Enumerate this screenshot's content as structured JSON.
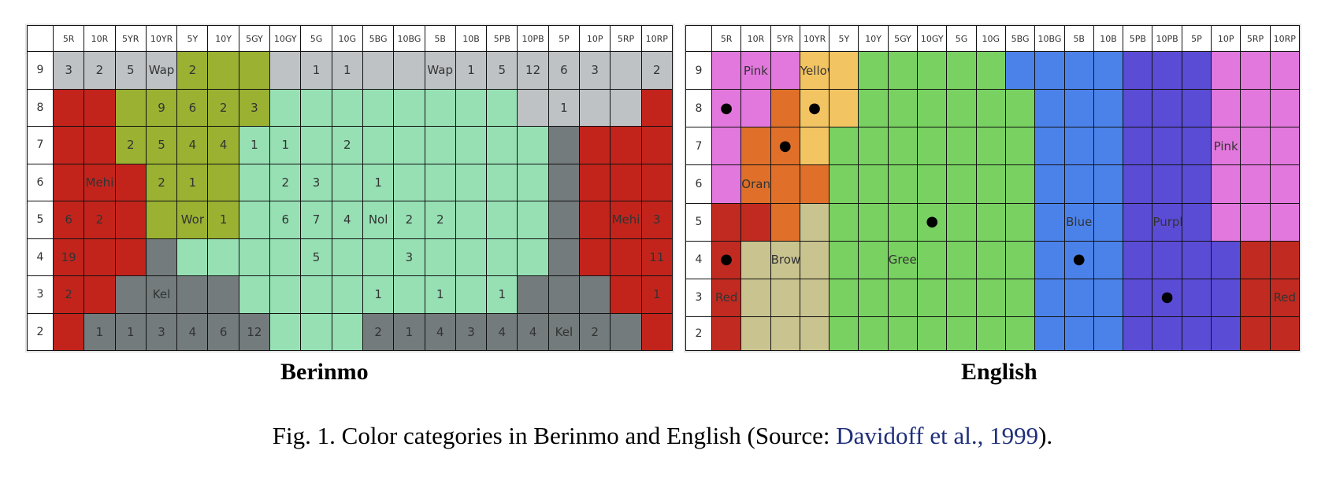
{
  "colors": {
    "Wap": "#bfc2c5",
    "Mehi": "#c2241c",
    "Wor": "#9ab132",
    "Nol": "#96e0b4",
    "Kel": "#737b7c",
    "Pink": "#e278dd",
    "Yellow": "#f3c462",
    "Orange": "#e07029",
    "Brown": "#c9c38f",
    "Green": "#78d161",
    "Blue": "#4b82ea",
    "Purple": "#5b4cd6",
    "Red": "#c12a20"
  },
  "hue_columns": [
    "5R",
    "10R",
    "5YR",
    "10YR",
    "5Y",
    "10Y",
    "5GY",
    "10GY",
    "5G",
    "10G",
    "5BG",
    "10BG",
    "5B",
    "10B",
    "5PB",
    "10PB",
    "5P",
    "10P",
    "5RP",
    "10RP"
  ],
  "value_rows": [
    "9",
    "8",
    "7",
    "6",
    "5",
    "4",
    "3",
    "2"
  ],
  "berinmo": {
    "title": "Berinmo",
    "grid_colors": [
      [
        "Wap",
        "Wap",
        "Wap",
        "Wap",
        "Wor",
        "Wor",
        "Wor",
        "Wap",
        "Wap",
        "Wap",
        "Wap",
        "Wap",
        "Wap",
        "Wap",
        "Wap",
        "Wap",
        "Wap",
        "Wap",
        "Wap",
        "Wap"
      ],
      [
        "Mehi",
        "Mehi",
        "Wor",
        "Wor",
        "Wor",
        "Wor",
        "Wor",
        "Nol",
        "Nol",
        "Nol",
        "Nol",
        "Nol",
        "Nol",
        "Nol",
        "Nol",
        "Wap",
        "Wap",
        "Wap",
        "Wap",
        "Mehi"
      ],
      [
        "Mehi",
        "Mehi",
        "Wor",
        "Wor",
        "Wor",
        "Wor",
        "Nol",
        "Nol",
        "Nol",
        "Nol",
        "Nol",
        "Nol",
        "Nol",
        "Nol",
        "Nol",
        "Nol",
        "Kel",
        "Mehi",
        "Mehi",
        "Mehi"
      ],
      [
        "Mehi",
        "Mehi",
        "Mehi",
        "Wor",
        "Wor",
        "Wor",
        "Nol",
        "Nol",
        "Nol",
        "Nol",
        "Nol",
        "Nol",
        "Nol",
        "Nol",
        "Nol",
        "Nol",
        "Kel",
        "Mehi",
        "Mehi",
        "Mehi"
      ],
      [
        "Mehi",
        "Mehi",
        "Mehi",
        "Wor",
        "Wor",
        "Wor",
        "Nol",
        "Nol",
        "Nol",
        "Nol",
        "Nol",
        "Nol",
        "Nol",
        "Nol",
        "Nol",
        "Nol",
        "Kel",
        "Mehi",
        "Mehi",
        "Mehi"
      ],
      [
        "Mehi",
        "Mehi",
        "Mehi",
        "Kel",
        "Nol",
        "Nol",
        "Nol",
        "Nol",
        "Nol",
        "Nol",
        "Nol",
        "Nol",
        "Nol",
        "Nol",
        "Nol",
        "Nol",
        "Kel",
        "Mehi",
        "Mehi",
        "Mehi"
      ],
      [
        "Mehi",
        "Mehi",
        "Kel",
        "Kel",
        "Kel",
        "Kel",
        "Nol",
        "Nol",
        "Nol",
        "Nol",
        "Nol",
        "Nol",
        "Nol",
        "Nol",
        "Nol",
        "Kel",
        "Kel",
        "Kel",
        "Mehi",
        "Mehi"
      ],
      [
        "Mehi",
        "Kel",
        "Kel",
        "Kel",
        "Kel",
        "Kel",
        "Kel",
        "Nol",
        "Nol",
        "Nol",
        "Kel",
        "Kel",
        "Kel",
        "Kel",
        "Kel",
        "Kel",
        "Kel",
        "Kel",
        "Kel",
        "Mehi"
      ]
    ],
    "grid_labels": [
      [
        "3",
        "2",
        "5",
        "Wap",
        "2",
        "",
        "",
        "",
        "1",
        "1",
        "",
        "",
        "Wap",
        "1",
        "5",
        "12",
        "6",
        "3",
        "",
        "2"
      ],
      [
        "",
        "",
        "",
        "9",
        "6",
        "2",
        "3",
        "",
        "",
        "",
        "",
        "",
        "",
        "",
        "",
        "",
        "1",
        "",
        "",
        ""
      ],
      [
        "",
        "",
        "2",
        "5",
        "4",
        "4",
        "1",
        "1",
        "",
        "2",
        "",
        "",
        "",
        "",
        "",
        "",
        "",
        "",
        "",
        ""
      ],
      [
        "",
        "Mehi",
        "",
        "2",
        "1",
        "",
        "",
        "2",
        "3",
        "",
        "1",
        "",
        "",
        "",
        "",
        "",
        "",
        "",
        "",
        ""
      ],
      [
        "6",
        "2",
        "",
        "",
        "Wor",
        "1",
        "",
        "6",
        "7",
        "4",
        "Nol",
        "2",
        "2",
        "",
        "",
        "",
        "",
        "",
        "Mehi",
        "3"
      ],
      [
        "19",
        "",
        "",
        "",
        "",
        "",
        "",
        "",
        "5",
        "",
        "",
        "3",
        "",
        "",
        "",
        "",
        "",
        "",
        "",
        "11"
      ],
      [
        "2",
        "",
        "",
        "Kel",
        "",
        "",
        "",
        "",
        "",
        "",
        "1",
        "",
        "1",
        "",
        "1",
        "",
        "",
        "",
        "",
        "1"
      ],
      [
        "",
        "1",
        "1",
        "3",
        "4",
        "6",
        "12",
        "",
        "",
        "",
        "2",
        "1",
        "4",
        "3",
        "4",
        "4",
        "Kel",
        "2",
        "",
        ""
      ]
    ]
  },
  "english": {
    "title": "English",
    "grid_colors": [
      [
        "Pink",
        "Pink",
        "Pink",
        "Yellow",
        "Yellow",
        "Green",
        "Green",
        "Green",
        "Green",
        "Green",
        "Blue",
        "Blue",
        "Blue",
        "Blue",
        "Purple",
        "Purple",
        "Purple",
        "Pink",
        "Pink",
        "Pink"
      ],
      [
        "Pink",
        "Pink",
        "Orange",
        "Yellow",
        "Yellow",
        "Green",
        "Green",
        "Green",
        "Green",
        "Green",
        "Green",
        "Blue",
        "Blue",
        "Blue",
        "Purple",
        "Purple",
        "Purple",
        "Pink",
        "Pink",
        "Pink"
      ],
      [
        "Pink",
        "Orange",
        "Orange",
        "Yellow",
        "Green",
        "Green",
        "Green",
        "Green",
        "Green",
        "Green",
        "Green",
        "Blue",
        "Blue",
        "Blue",
        "Purple",
        "Purple",
        "Purple",
        "Pink",
        "Pink",
        "Pink"
      ],
      [
        "Pink",
        "Orange",
        "Orange",
        "Orange",
        "Green",
        "Green",
        "Green",
        "Green",
        "Green",
        "Green",
        "Green",
        "Blue",
        "Blue",
        "Blue",
        "Purple",
        "Purple",
        "Purple",
        "Pink",
        "Pink",
        "Pink"
      ],
      [
        "Red",
        "Red",
        "Orange",
        "Brown",
        "Green",
        "Green",
        "Green",
        "Green",
        "Green",
        "Green",
        "Green",
        "Blue",
        "Blue",
        "Blue",
        "Purple",
        "Purple",
        "Purple",
        "Pink",
        "Pink",
        "Pink"
      ],
      [
        "Red",
        "Brown",
        "Brown",
        "Brown",
        "Green",
        "Green",
        "Green",
        "Green",
        "Green",
        "Green",
        "Green",
        "Blue",
        "Blue",
        "Blue",
        "Purple",
        "Purple",
        "Purple",
        "Purple",
        "Red",
        "Red"
      ],
      [
        "Red",
        "Brown",
        "Brown",
        "Brown",
        "Green",
        "Green",
        "Green",
        "Green",
        "Green",
        "Green",
        "Green",
        "Blue",
        "Blue",
        "Blue",
        "Purple",
        "Purple",
        "Purple",
        "Purple",
        "Red",
        "Red"
      ],
      [
        "Red",
        "Brown",
        "Brown",
        "Brown",
        "Green",
        "Green",
        "Green",
        "Green",
        "Green",
        "Green",
        "Green",
        "Blue",
        "Blue",
        "Blue",
        "Purple",
        "Purple",
        "Purple",
        "Purple",
        "Red",
        "Red"
      ]
    ],
    "grid_labels": [
      [
        "",
        "Pink",
        "",
        "Yellow",
        "",
        "",
        "",
        "",
        "",
        "",
        "",
        "",
        "",
        "",
        "",
        "",
        "",
        "",
        "",
        ""
      ],
      [
        "",
        "",
        "",
        "",
        "",
        "",
        "",
        "",
        "",
        "",
        "",
        "",
        "",
        "",
        "",
        "",
        "",
        "",
        "",
        ""
      ],
      [
        "",
        "",
        "",
        "",
        "",
        "",
        "",
        "",
        "",
        "",
        "",
        "",
        "",
        "",
        "",
        "",
        "",
        "Pink",
        "",
        ""
      ],
      [
        "",
        "Orange",
        "",
        "",
        "",
        "",
        "",
        "",
        "",
        "",
        "",
        "",
        "",
        "",
        "",
        "",
        "",
        "",
        "",
        ""
      ],
      [
        "",
        "",
        "",
        "",
        "",
        "",
        "",
        "",
        "",
        "",
        "",
        "",
        "Blue",
        "",
        "",
        "Purple",
        "",
        "",
        "",
        ""
      ],
      [
        "",
        "",
        "Brown",
        "",
        "",
        "",
        "Green",
        "",
        "",
        "",
        "",
        "",
        "",
        "",
        "",
        "",
        "",
        "",
        "",
        ""
      ],
      [
        "Red",
        "",
        "",
        "",
        "",
        "",
        "",
        "",
        "",
        "",
        "",
        "",
        "",
        "",
        "",
        "",
        "",
        "",
        "",
        "Red"
      ],
      [
        "",
        "",
        "",
        "",
        "",
        "",
        "",
        "",
        "",
        "",
        "",
        "",
        "",
        "",
        "",
        "",
        "",
        "",
        "",
        ""
      ]
    ],
    "focal_points": [
      [
        1,
        0
      ],
      [
        1,
        3
      ],
      [
        2,
        2
      ],
      [
        4,
        7
      ],
      [
        5,
        0
      ],
      [
        5,
        12
      ],
      [
        6,
        15
      ]
    ]
  },
  "caption": {
    "prefix": "Fig. 1.  Color categories in Berinmo and English (Source: ",
    "link": "Davidoff et al., 1999",
    "suffix": ")."
  }
}
